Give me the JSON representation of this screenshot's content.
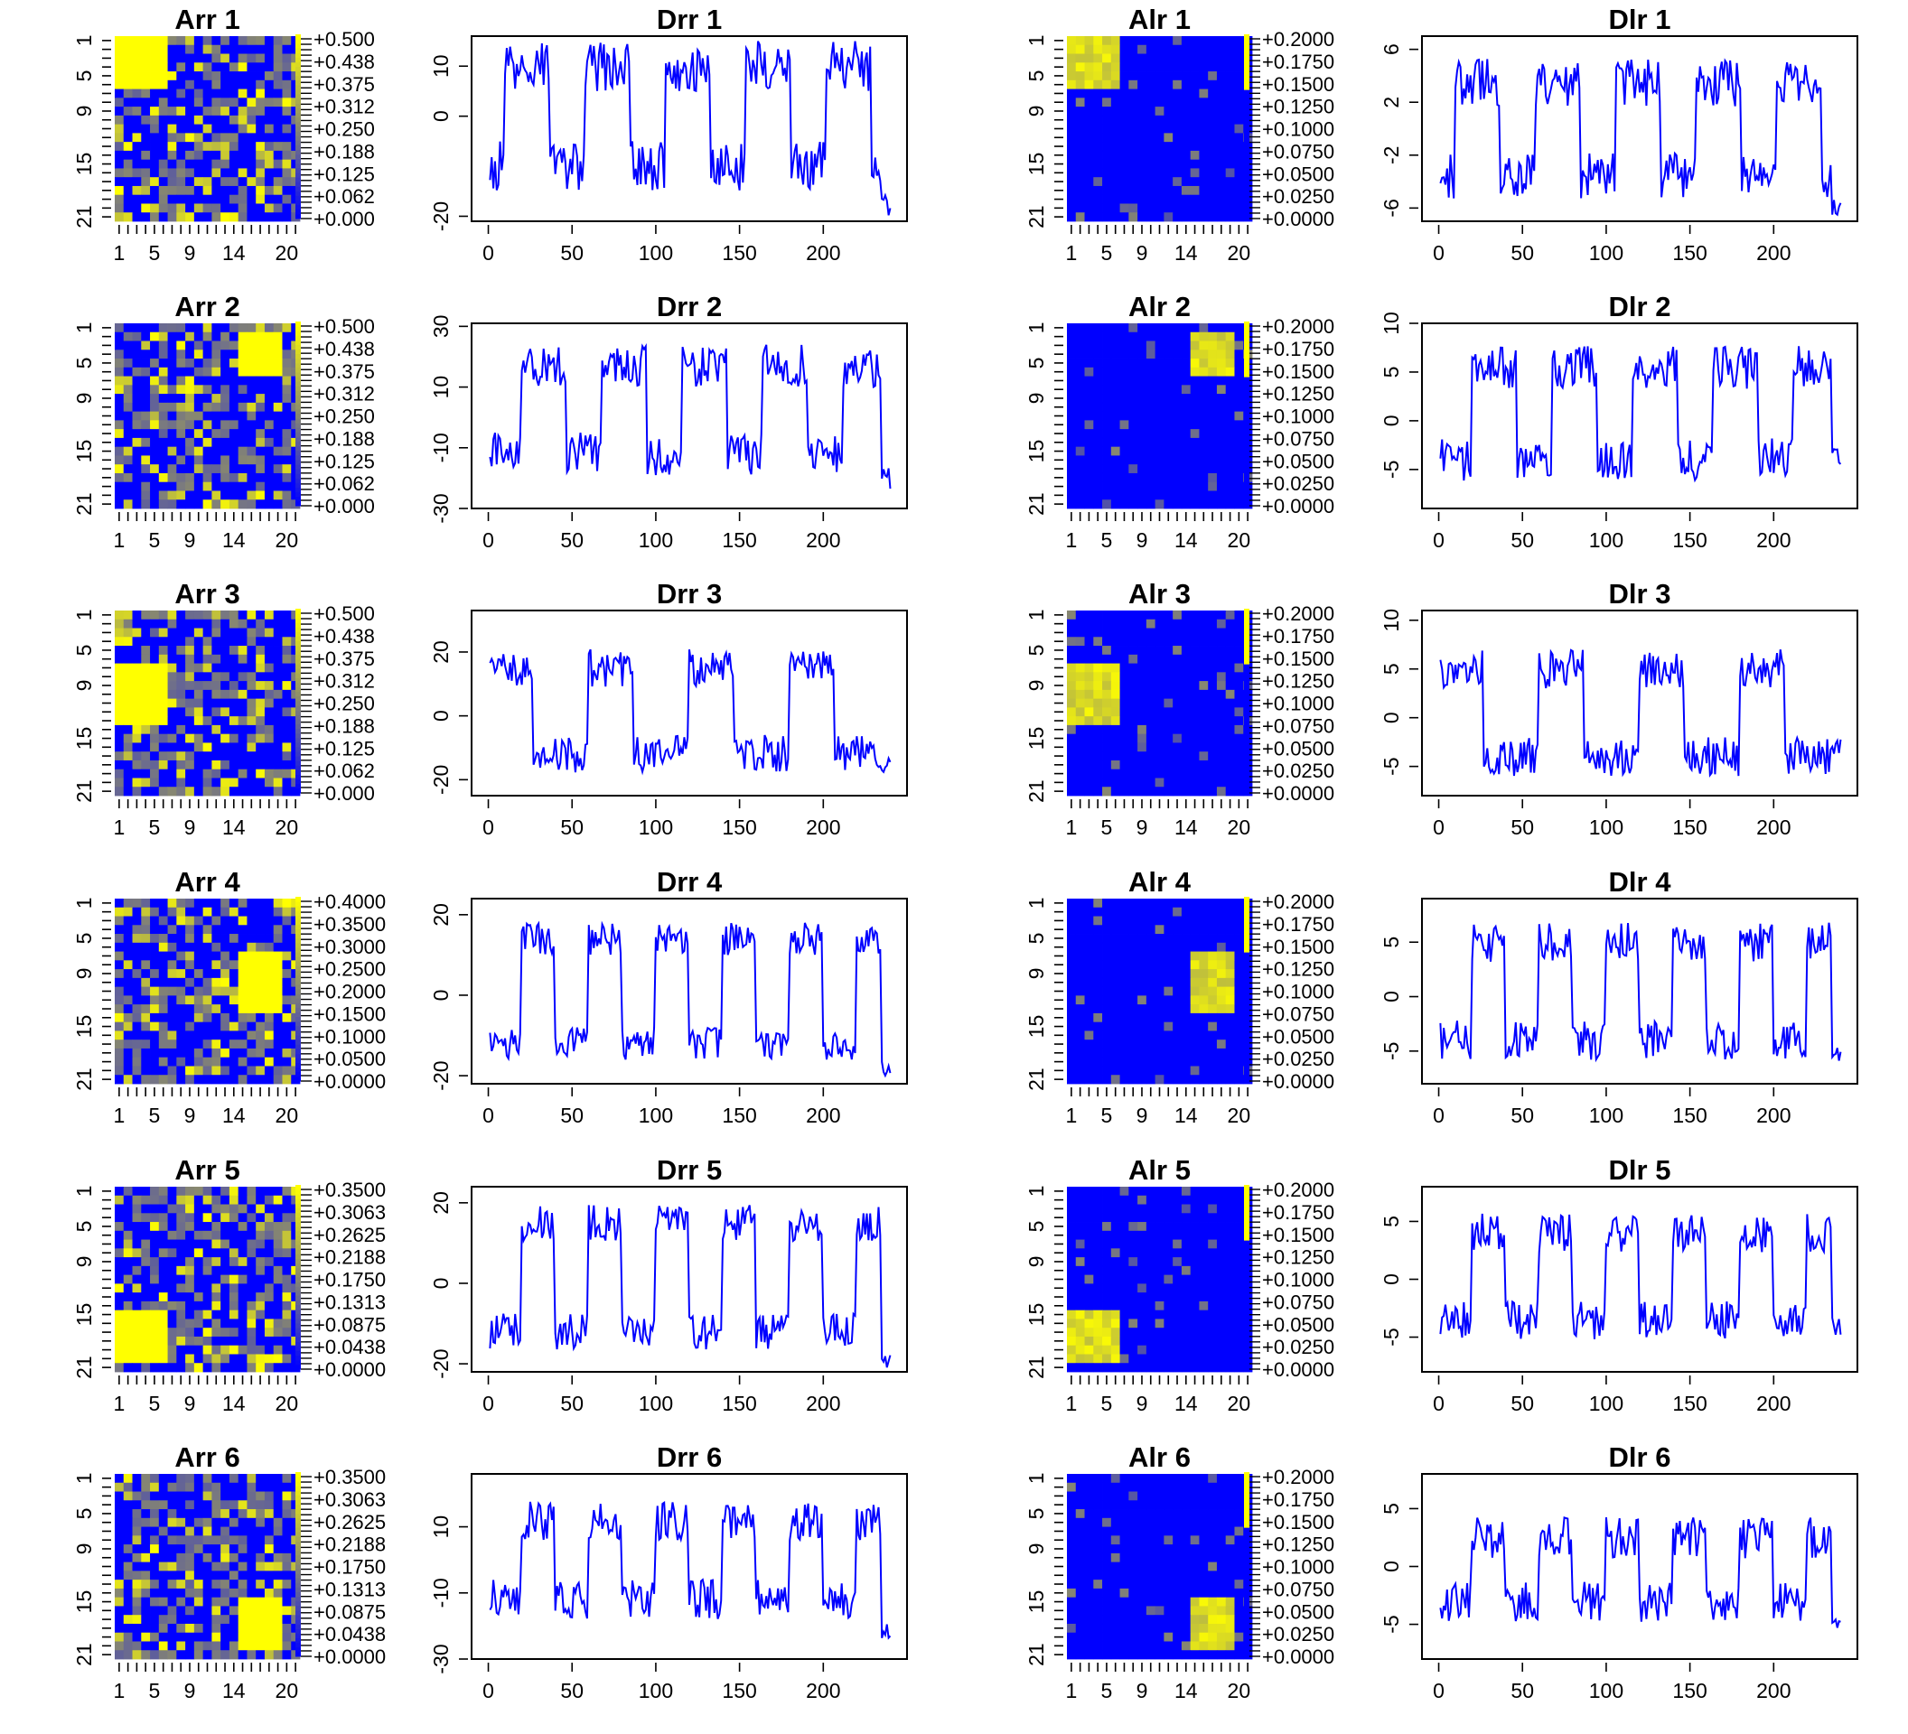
{
  "figure": {
    "colors": {
      "low": "#0000ff",
      "high": "#ffff00",
      "mid": "#888870",
      "line": "#0000ff",
      "frame": "#000000"
    },
    "rows": [
      {
        "label": "1"
      },
      {
        "label": "2"
      },
      {
        "label": "3"
      },
      {
        "label": "4"
      },
      {
        "label": "5"
      },
      {
        "label": "6"
      }
    ]
  },
  "chart_data": [
    {
      "type": "heatmap",
      "title": "Arr 1",
      "x_tick_labels": [
        "1",
        "5",
        "9",
        "14",
        "20"
      ],
      "y_tick_labels": [
        "1",
        "5",
        "9",
        "15",
        "21"
      ],
      "grid_size": 21,
      "block": {
        "row_start": 1,
        "row_end": 6,
        "col_start": 1,
        "col_end": 6
      },
      "legend_labels": [
        "+0.500",
        "+0.438",
        "+0.375",
        "+0.312",
        "+0.250",
        "+0.188",
        "+0.125",
        "+0.062",
        "+0.000"
      ],
      "legend_range": [
        0,
        0.5
      ]
    },
    {
      "type": "line",
      "title": "Drr 1",
      "x_ticks": [
        0,
        50,
        100,
        150,
        200
      ],
      "y_ticks": [
        10,
        0,
        -20
      ],
      "y_tick_labels": [
        "10",
        "0",
        "-20"
      ],
      "ylim": [
        -21,
        16
      ],
      "period": 48,
      "phase": 10,
      "duty": 0.55,
      "amplitude": [
        10,
        -10
      ],
      "noise": 5,
      "tail": -18
    },
    {
      "type": "heatmap",
      "title": "Alr 1",
      "x_tick_labels": [
        "1",
        "5",
        "9",
        "14",
        "20"
      ],
      "y_tick_labels": [
        "1",
        "5",
        "9",
        "15",
        "21"
      ],
      "grid_size": 21,
      "block": {
        "row_start": 1,
        "row_end": 6,
        "col_start": 1,
        "col_end": 6
      },
      "legend_labels": [
        "+0.2000",
        "+0.1750",
        "+0.1500",
        "+0.1250",
        "+0.1000",
        "+0.0750",
        "+0.0500",
        "+0.0250",
        "+0.0000"
      ],
      "legend_range": [
        0,
        0.2
      ]
    },
    {
      "type": "line",
      "title": "Dlr 1",
      "x_ticks": [
        0,
        50,
        100,
        150,
        200
      ],
      "y_ticks": [
        6,
        2,
        -2,
        -6
      ],
      "y_tick_labels": [
        "6",
        "2",
        "-2",
        "-6"
      ],
      "ylim": [
        -7,
        7
      ],
      "period": 48,
      "phase": 10,
      "duty": 0.55,
      "amplitude": [
        3.5,
        -3.5
      ],
      "noise": 1.8,
      "tail": -6
    },
    {
      "type": "heatmap",
      "title": "Arr 2",
      "x_tick_labels": [
        "1",
        "5",
        "9",
        "14",
        "20"
      ],
      "y_tick_labels": [
        "1",
        "5",
        "9",
        "15",
        "21"
      ],
      "grid_size": 21,
      "block": {
        "row_start": 2,
        "row_end": 6,
        "col_start": 15,
        "col_end": 19
      },
      "legend_labels": [
        "+0.500",
        "+0.438",
        "+0.375",
        "+0.312",
        "+0.250",
        "+0.188",
        "+0.125",
        "+0.062",
        "+0.000"
      ],
      "legend_range": [
        0,
        0.5
      ]
    },
    {
      "type": "line",
      "title": "Drr 2",
      "x_ticks": [
        0,
        50,
        100,
        150,
        200
      ],
      "y_ticks": [
        30,
        10,
        -10,
        -30
      ],
      "y_tick_labels": [
        "30",
        "10",
        "-10",
        "-30"
      ],
      "ylim": [
        -30,
        31
      ],
      "period": 48,
      "phase": 20,
      "duty": 0.55,
      "amplitude": [
        17,
        -12
      ],
      "noise": 7,
      "tail": -20
    },
    {
      "type": "heatmap",
      "title": "Alr 2",
      "x_tick_labels": [
        "1",
        "5",
        "9",
        "14",
        "20"
      ],
      "y_tick_labels": [
        "1",
        "5",
        "9",
        "15",
        "21"
      ],
      "grid_size": 21,
      "block": {
        "row_start": 2,
        "row_end": 6,
        "col_start": 15,
        "col_end": 19
      },
      "legend_labels": [
        "+0.2000",
        "+0.1750",
        "+0.1500",
        "+0.1250",
        "+0.1000",
        "+0.0750",
        "+0.0500",
        "+0.0250",
        "+0.0000"
      ],
      "legend_range": [
        0,
        0.2
      ]
    },
    {
      "type": "line",
      "title": "Dlr 2",
      "x_ticks": [
        0,
        50,
        100,
        150,
        200
      ],
      "y_ticks": [
        10,
        5,
        0,
        -5
      ],
      "y_tick_labels": [
        "10",
        "5",
        "0",
        "-5"
      ],
      "ylim": [
        -9,
        10
      ],
      "period": 48,
      "phase": 20,
      "duty": 0.55,
      "amplitude": [
        5.5,
        -4
      ],
      "noise": 2.2,
      "tail": -4
    },
    {
      "type": "heatmap",
      "title": "Arr 3",
      "x_tick_labels": [
        "1",
        "5",
        "9",
        "14",
        "20"
      ],
      "y_tick_labels": [
        "1",
        "5",
        "9",
        "15",
        "21"
      ],
      "grid_size": 21,
      "block": {
        "row_start": 7,
        "row_end": 13,
        "col_start": 1,
        "col_end": 6
      },
      "legend_labels": [
        "+0.500",
        "+0.438",
        "+0.375",
        "+0.312",
        "+0.250",
        "+0.188",
        "+0.125",
        "+0.062",
        "+0.000"
      ],
      "legend_range": [
        0,
        0.5
      ]
    },
    {
      "type": "line",
      "title": "Drr 3",
      "x_ticks": [
        0,
        50,
        100,
        150,
        200
      ],
      "y_ticks": [
        20,
        0,
        -20
      ],
      "y_tick_labels": [
        "20",
        "0",
        "-20"
      ],
      "ylim": [
        -25,
        33
      ],
      "period": 60,
      "phase": 0,
      "duty": 0.45,
      "amplitude": [
        15,
        -12
      ],
      "noise": 6,
      "tail": -15
    },
    {
      "type": "heatmap",
      "title": "Alr 3",
      "x_tick_labels": [
        "1",
        "5",
        "9",
        "14",
        "20"
      ],
      "y_tick_labels": [
        "1",
        "5",
        "9",
        "15",
        "21"
      ],
      "grid_size": 21,
      "block": {
        "row_start": 7,
        "row_end": 13,
        "col_start": 1,
        "col_end": 6
      },
      "legend_labels": [
        "+0.2000",
        "+0.1750",
        "+0.1500",
        "+0.1250",
        "+0.1000",
        "+0.0750",
        "+0.0500",
        "+0.0250",
        "+0.0000"
      ],
      "legend_range": [
        0,
        0.2
      ]
    },
    {
      "type": "line",
      "title": "Dlr 3",
      "x_ticks": [
        0,
        50,
        100,
        150,
        200
      ],
      "y_ticks": [
        10,
        5,
        0,
        -5
      ],
      "y_tick_labels": [
        "10",
        "5",
        "0",
        "-5"
      ],
      "ylim": [
        -8,
        11
      ],
      "period": 60,
      "phase": 0,
      "duty": 0.45,
      "amplitude": [
        5,
        -4
      ],
      "noise": 2,
      "tail": -3
    },
    {
      "type": "heatmap",
      "title": "Arr 4",
      "x_tick_labels": [
        "1",
        "5",
        "9",
        "14",
        "20"
      ],
      "y_tick_labels": [
        "1",
        "5",
        "9",
        "15",
        "21"
      ],
      "grid_size": 21,
      "block": {
        "row_start": 7,
        "row_end": 13,
        "col_start": 15,
        "col_end": 19
      },
      "legend_labels": [
        "+0.4000",
        "+0.3500",
        "+0.3000",
        "+0.2500",
        "+0.2000",
        "+0.1500",
        "+0.1000",
        "+0.0500",
        "+0.0000"
      ],
      "legend_range": [
        0,
        0.4
      ]
    },
    {
      "type": "line",
      "title": "Drr 4",
      "x_ticks": [
        0,
        50,
        100,
        150,
        200
      ],
      "y_ticks": [
        20,
        0,
        -20
      ],
      "y_tick_labels": [
        "20",
        "0",
        "-20"
      ],
      "ylim": [
        -22,
        24
      ],
      "period": 40,
      "phase": 20,
      "duty": 0.5,
      "amplitude": [
        14,
        -12
      ],
      "noise": 4,
      "tail": -18
    },
    {
      "type": "heatmap",
      "title": "Alr 4",
      "x_tick_labels": [
        "1",
        "5",
        "9",
        "14",
        "20"
      ],
      "y_tick_labels": [
        "1",
        "5",
        "9",
        "15",
        "21"
      ],
      "grid_size": 21,
      "block": {
        "row_start": 7,
        "row_end": 13,
        "col_start": 15,
        "col_end": 19
      },
      "legend_labels": [
        "+0.2000",
        "+0.1750",
        "+0.1500",
        "+0.1250",
        "+0.1000",
        "+0.0750",
        "+0.0500",
        "+0.0250",
        "+0.0000"
      ],
      "legend_range": [
        0,
        0.2
      ]
    },
    {
      "type": "line",
      "title": "Dlr 4",
      "x_ticks": [
        0,
        50,
        100,
        150,
        200
      ],
      "y_ticks": [
        5,
        0,
        -5
      ],
      "y_tick_labels": [
        "5",
        "0",
        "-5"
      ],
      "ylim": [
        -8,
        9
      ],
      "period": 40,
      "phase": 20,
      "duty": 0.5,
      "amplitude": [
        5,
        -4
      ],
      "noise": 1.8,
      "tail": -5
    },
    {
      "type": "heatmap",
      "title": "Arr 5",
      "x_tick_labels": [
        "1",
        "5",
        "9",
        "14",
        "20"
      ],
      "y_tick_labels": [
        "1",
        "5",
        "9",
        "15",
        "21"
      ],
      "grid_size": 21,
      "block": {
        "row_start": 15,
        "row_end": 20,
        "col_start": 1,
        "col_end": 6
      },
      "legend_labels": [
        "+0.3500",
        "+0.3063",
        "+0.2625",
        "+0.2188",
        "+0.1750",
        "+0.1313",
        "+0.0875",
        "+0.0438",
        "+0.0000"
      ],
      "legend_range": [
        0,
        0.35
      ]
    },
    {
      "type": "line",
      "title": "Drr 5",
      "x_ticks": [
        0,
        50,
        100,
        150,
        200
      ],
      "y_ticks": [
        20,
        0,
        -20
      ],
      "y_tick_labels": [
        "20",
        "0",
        "-20"
      ],
      "ylim": [
        -22,
        24
      ],
      "period": 40,
      "phase": 20,
      "duty": 0.5,
      "amplitude": [
        15,
        -12
      ],
      "noise": 4.5,
      "tail": -19
    },
    {
      "type": "heatmap",
      "title": "Alr 5",
      "x_tick_labels": [
        "1",
        "5",
        "9",
        "14",
        "20"
      ],
      "y_tick_labels": [
        "1",
        "5",
        "9",
        "15",
        "21"
      ],
      "grid_size": 21,
      "block": {
        "row_start": 15,
        "row_end": 20,
        "col_start": 1,
        "col_end": 6
      },
      "legend_labels": [
        "+0.2000",
        "+0.1750",
        "+0.1500",
        "+0.1250",
        "+0.1000",
        "+0.0750",
        "+0.0500",
        "+0.0250",
        "+0.0000"
      ],
      "legend_range": [
        0,
        0.2
      ]
    },
    {
      "type": "line",
      "title": "Dlr 5",
      "x_ticks": [
        0,
        50,
        100,
        150,
        200
      ],
      "y_ticks": [
        5,
        0,
        -5
      ],
      "y_tick_labels": [
        "5",
        "0",
        "-5"
      ],
      "ylim": [
        -8,
        8
      ],
      "period": 40,
      "phase": 20,
      "duty": 0.5,
      "amplitude": [
        4,
        -3.5
      ],
      "noise": 1.7,
      "tail": -4
    },
    {
      "type": "heatmap",
      "title": "Arr 6",
      "x_tick_labels": [
        "1",
        "5",
        "9",
        "14",
        "20"
      ],
      "y_tick_labels": [
        "1",
        "5",
        "9",
        "15",
        "21"
      ],
      "grid_size": 21,
      "block": {
        "row_start": 15,
        "row_end": 20,
        "col_start": 15,
        "col_end": 19
      },
      "legend_labels": [
        "+0.3500",
        "+0.3063",
        "+0.2625",
        "+0.2188",
        "+0.1750",
        "+0.1313",
        "+0.0875",
        "+0.0438",
        "+0.0000"
      ],
      "legend_range": [
        0,
        0.35
      ]
    },
    {
      "type": "line",
      "title": "Drr 6",
      "x_ticks": [
        0,
        50,
        100,
        150,
        200
      ],
      "y_ticks": [
        10,
        -10,
        -30
      ],
      "y_tick_labels": [
        "10",
        "-10",
        "-30"
      ],
      "ylim": [
        -30,
        26
      ],
      "period": 40,
      "phase": 20,
      "duty": 0.5,
      "amplitude": [
        12,
        -12
      ],
      "noise": 6,
      "tail": -22
    },
    {
      "type": "heatmap",
      "title": "Alr 6",
      "x_tick_labels": [
        "1",
        "5",
        "9",
        "14",
        "20"
      ],
      "y_tick_labels": [
        "1",
        "5",
        "9",
        "15",
        "21"
      ],
      "grid_size": 21,
      "block": {
        "row_start": 15,
        "row_end": 20,
        "col_start": 15,
        "col_end": 19
      },
      "legend_labels": [
        "+0.2000",
        "+0.1750",
        "+0.1500",
        "+0.1250",
        "+0.1000",
        "+0.0750",
        "+0.0500",
        "+0.0250",
        "+0.0000"
      ],
      "legend_range": [
        0,
        0.2
      ]
    },
    {
      "type": "line",
      "title": "Dlr 6",
      "x_ticks": [
        0,
        50,
        100,
        150,
        200
      ],
      "y_ticks": [
        5,
        0,
        -5
      ],
      "y_tick_labels": [
        "5",
        "0",
        "-5"
      ],
      "ylim": [
        -8,
        8
      ],
      "period": 40,
      "phase": 20,
      "duty": 0.5,
      "amplitude": [
        2.5,
        -3
      ],
      "noise": 1.8,
      "tail": -5
    }
  ]
}
